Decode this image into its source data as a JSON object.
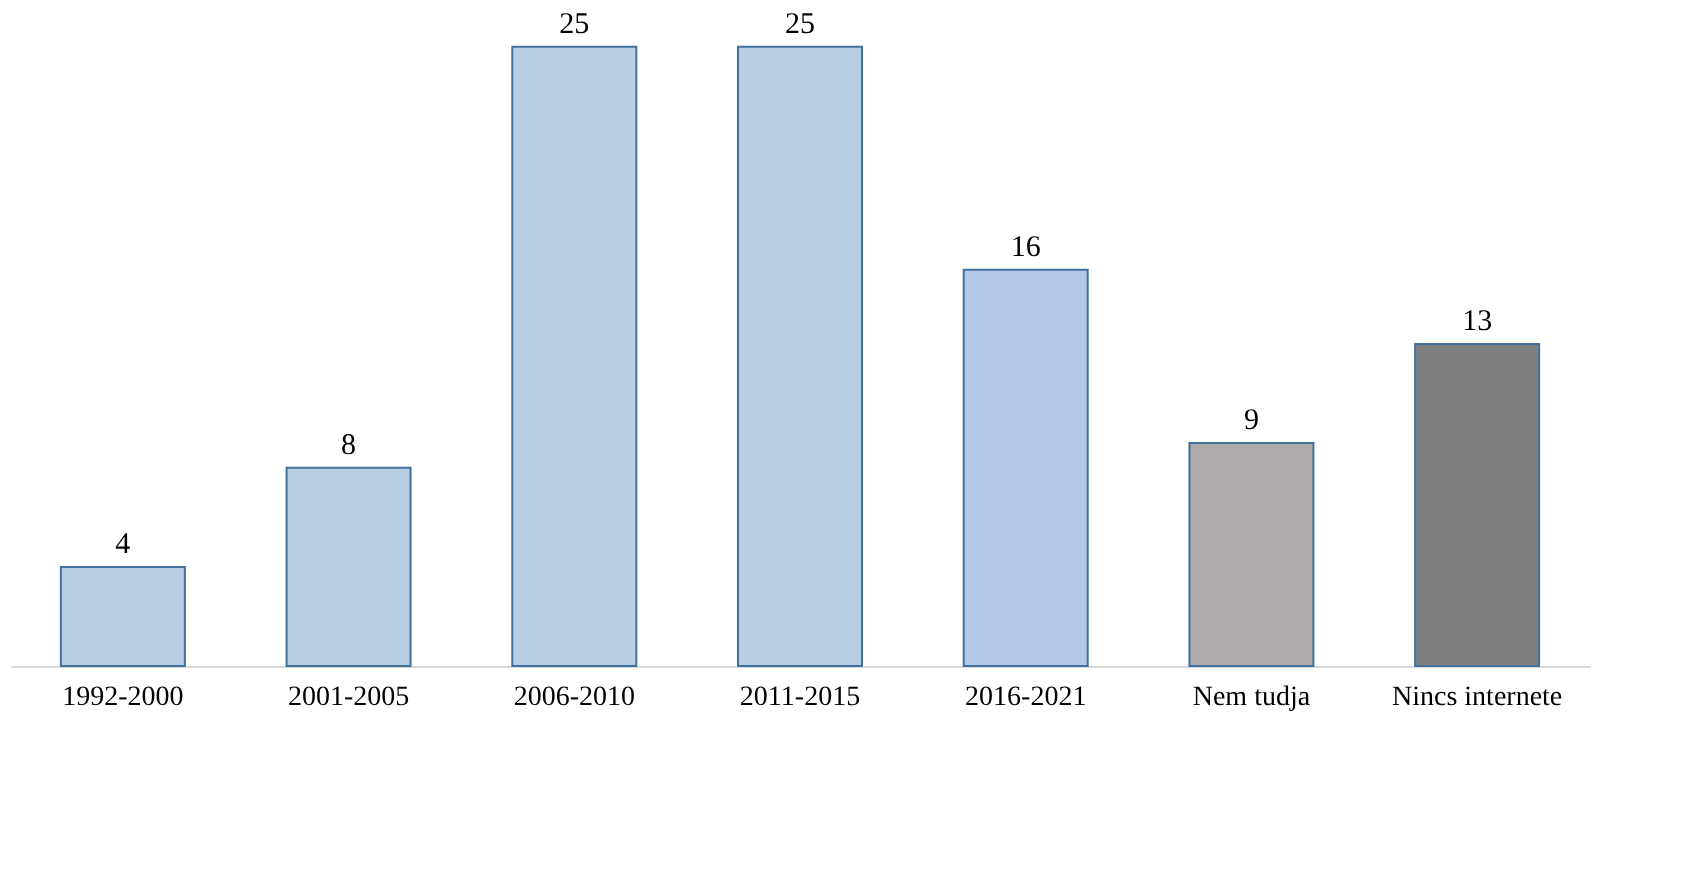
{
  "chart_data": {
    "type": "bar",
    "categories": [
      "1992-2000",
      "2001-2005",
      "2006-2010",
      "2011-2015",
      "2016-2021",
      "Nem tudja",
      "Nincs internete"
    ],
    "values": [
      4,
      8,
      25,
      25,
      16,
      9,
      13
    ],
    "colors": [
      "#b9cde5",
      "#b9cde5",
      "#b9cde5",
      "#b9cde5",
      "#b4c7e7",
      "#afabab",
      "#7f7f7f"
    ],
    "data_labels": true,
    "tick_labels": "x"
  }
}
